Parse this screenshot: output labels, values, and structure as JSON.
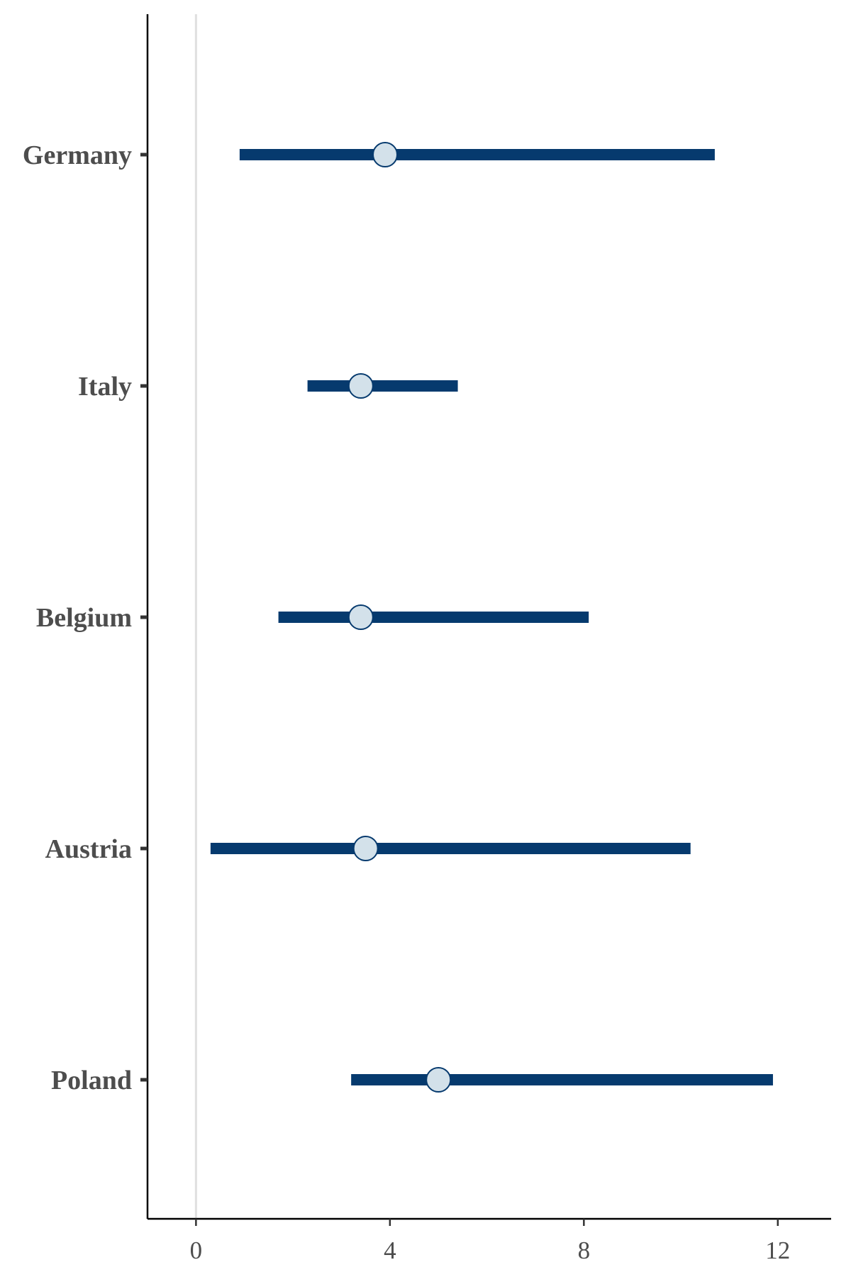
{
  "chart_data": {
    "type": "dot-interval",
    "orientation": "horizontal",
    "title": "",
    "xlabel": "",
    "ylabel": "",
    "categories": [
      "Germany",
      "Italy",
      "Belgium",
      "Austria",
      "Poland"
    ],
    "points": [
      {
        "category": "Germany",
        "estimate": 3.9,
        "lower": 0.9,
        "upper": 10.7
      },
      {
        "category": "Italy",
        "estimate": 3.4,
        "lower": 2.3,
        "upper": 5.4
      },
      {
        "category": "Belgium",
        "estimate": 3.4,
        "lower": 1.7,
        "upper": 8.1
      },
      {
        "category": "Austria",
        "estimate": 3.5,
        "lower": 0.3,
        "upper": 10.2
      },
      {
        "category": "Poland",
        "estimate": 5.0,
        "lower": 3.2,
        "upper": 11.9
      }
    ],
    "xlim": [
      -1,
      13.1
    ],
    "xticks": [
      0,
      4,
      8,
      12
    ],
    "xtick_labels": [
      "0",
      "4",
      "8",
      "12"
    ],
    "reference_line": 0,
    "grid": false,
    "colors": {
      "interval": "#063a6e",
      "point_fill": "#d3e1ea",
      "point_stroke": "#063a6e",
      "reference_line": "#e0e0e0",
      "axis": "#000000",
      "text": "#4d4d4d"
    }
  }
}
